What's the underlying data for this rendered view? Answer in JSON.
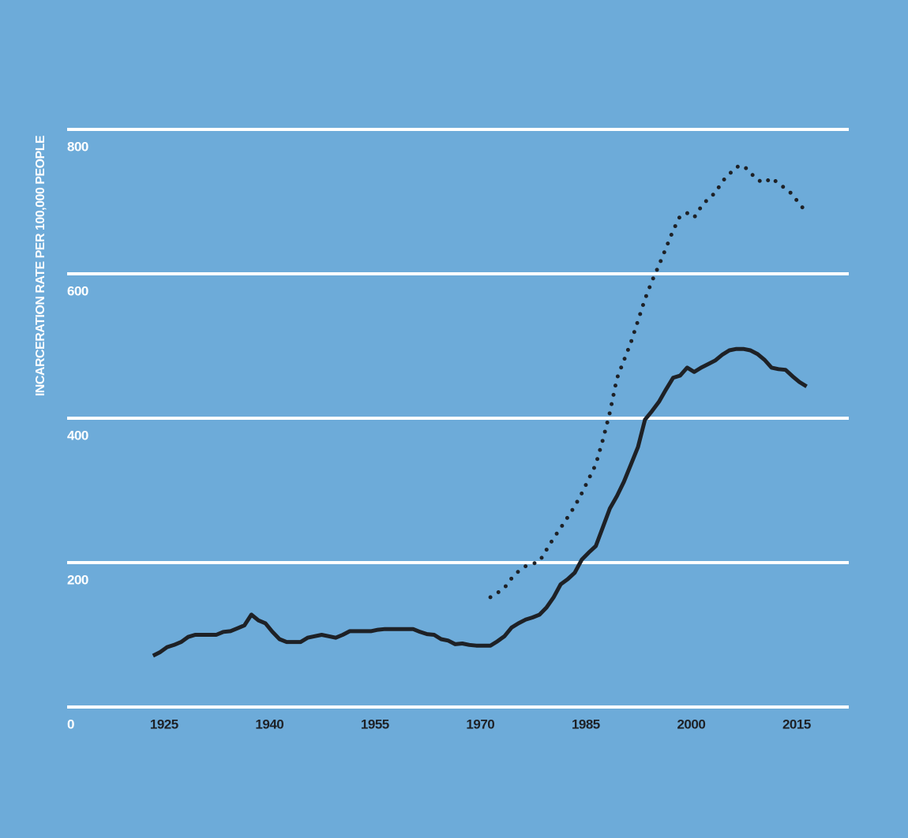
{
  "chart_data": {
    "type": "line",
    "y_label": "INCARCERATION RATE PER 100,000 PEOPLE",
    "x": [
      1925,
      1926,
      1927,
      1928,
      1929,
      1930,
      1931,
      1932,
      1933,
      1934,
      1935,
      1936,
      1937,
      1938,
      1939,
      1940,
      1941,
      1942,
      1943,
      1944,
      1945,
      1946,
      1947,
      1948,
      1949,
      1950,
      1951,
      1952,
      1953,
      1954,
      1955,
      1956,
      1957,
      1958,
      1959,
      1960,
      1961,
      1962,
      1963,
      1964,
      1965,
      1966,
      1967,
      1968,
      1969,
      1970,
      1971,
      1972,
      1973,
      1974,
      1975,
      1976,
      1977,
      1978,
      1979,
      1980,
      1981,
      1982,
      1983,
      1984,
      1985,
      1986,
      1987,
      1988,
      1989,
      1990,
      1991,
      1992,
      1993,
      1994,
      1995,
      1996,
      1997,
      1998,
      1999,
      2000,
      2001,
      2002,
      2003,
      2004,
      2005,
      2006,
      2007,
      2008,
      2009,
      2010,
      2011,
      2012,
      2013,
      2014,
      2015,
      2016,
      2017,
      2018
    ],
    "series": [
      {
        "color": "#1e2126",
        "style": "solid",
        "values": [
          71,
          76,
          83,
          86,
          90,
          97,
          100,
          100,
          100,
          100,
          104,
          105,
          109,
          113,
          128,
          120,
          116,
          104,
          94,
          90,
          90,
          90,
          96,
          98,
          100,
          98,
          96,
          100,
          105,
          105,
          105,
          105,
          107,
          108,
          108,
          108,
          108,
          108,
          104,
          101,
          100,
          94,
          92,
          87,
          88,
          86,
          85,
          85,
          85,
          91,
          98,
          110,
          116,
          121,
          124,
          128,
          138,
          152,
          170,
          177,
          186,
          204,
          214,
          223,
          249,
          275,
          292,
          312,
          336,
          360,
          398,
          410,
          423,
          440,
          456,
          459,
          470,
          464,
          470,
          475,
          480,
          488,
          494,
          496,
          496,
          494,
          489,
          481,
          470,
          468,
          467,
          458,
          450,
          444
        ]
      },
      {
        "color": "#1e2126",
        "style": "dotted",
        "values": [
          null,
          null,
          null,
          null,
          null,
          null,
          null,
          null,
          null,
          null,
          null,
          null,
          null,
          null,
          null,
          null,
          null,
          null,
          null,
          null,
          null,
          null,
          null,
          null,
          null,
          null,
          null,
          null,
          null,
          null,
          null,
          null,
          null,
          null,
          null,
          null,
          null,
          null,
          null,
          null,
          null,
          null,
          null,
          null,
          null,
          null,
          null,
          null,
          152,
          158,
          165,
          178,
          188,
          195,
          198,
          202,
          218,
          234,
          248,
          263,
          278,
          296,
          316,
          336,
          370,
          408,
          455,
          480,
          505,
          535,
          565,
          590,
          612,
          636,
          660,
          680,
          684,
          678,
          693,
          704,
          712,
          728,
          738,
          748,
          750,
          740,
          730,
          726,
          733,
          725,
          718,
          710,
          696,
          686
        ]
      }
    ],
    "xlim": [
      1913,
      2024
    ],
    "xticks": [
      1925,
      1940,
      1955,
      1970,
      1985,
      2000,
      2015
    ],
    "ylim": [
      0,
      800
    ],
    "yticks": [
      0,
      200,
      400,
      600,
      800
    ],
    "grid": true
  }
}
